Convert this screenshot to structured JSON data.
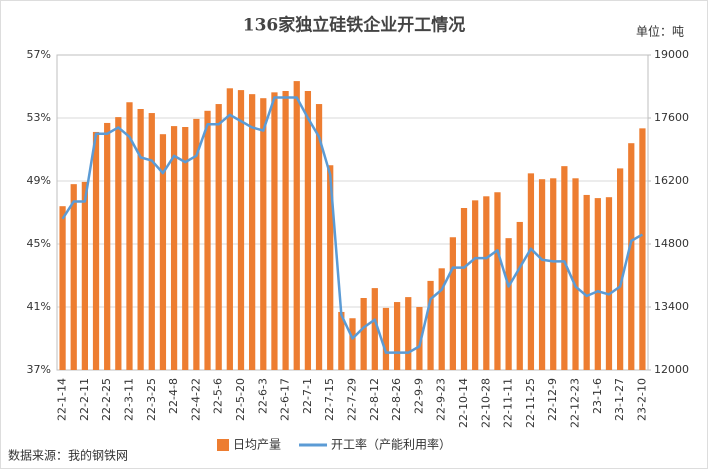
{
  "chart_data": {
    "type": "bar_line",
    "title": "136家独立硅铁企业开工情况",
    "unit": "单位：吨",
    "source": "数据来源：我的钢铁网",
    "categories": [
      "22-1-14",
      null,
      "22-2-11",
      null,
      "22-2-25",
      null,
      "22-3-11",
      null,
      "22-3-25",
      null,
      "22-4-8",
      null,
      "22-4-22",
      null,
      "22-5-6",
      null,
      "22-5-20",
      null,
      "22-6-3",
      null,
      "22-6-17",
      null,
      "22-7-1",
      null,
      "22-7-15",
      null,
      "22-7-29",
      null,
      "22-8-12",
      null,
      "22-8-26",
      null,
      "22-9-9",
      null,
      "22-9-23",
      null,
      "22-10-14",
      null,
      "22-10-28",
      null,
      "22-11-11",
      null,
      "22-11-25",
      null,
      "22-12-9",
      null,
      "22-12-23",
      null,
      "23-1-6",
      null,
      "23-1-27",
      null,
      "23-2-10"
    ],
    "series": [
      {
        "name": "日均产量",
        "kind": "bar",
        "axis": "y2",
        "color": "#ed7d31",
        "values": [
          15640,
          16130,
          16180,
          17290,
          17490,
          17620,
          17950,
          17800,
          17710,
          17240,
          17420,
          17400,
          17580,
          17760,
          17910,
          18260,
          18220,
          18130,
          18040,
          18170,
          18200,
          18420,
          18200,
          17910,
          16550,
          13290,
          13150,
          13600,
          13820,
          13380,
          13510,
          13620,
          13400,
          13980,
          14260,
          14950,
          15600,
          15770,
          15860,
          15950,
          14930,
          15290,
          16370,
          16240,
          16260,
          16530,
          16260,
          15890,
          15820,
          15840,
          16480,
          17040,
          17370
        ]
      },
      {
        "name": "开工率（产能利用率）",
        "kind": "line",
        "axis": "y",
        "color": "#5b9bd5",
        "values": [
          46.6,
          47.7,
          47.7,
          52.0,
          52.0,
          52.4,
          51.8,
          50.5,
          50.3,
          49.5,
          50.6,
          50.2,
          50.6,
          52.6,
          52.6,
          53.2,
          52.8,
          52.4,
          52.2,
          54.3,
          54.3,
          54.3,
          53.0,
          51.8,
          49.4,
          40.5,
          39.0,
          39.7,
          40.2,
          38.1,
          38.1,
          38.1,
          38.5,
          41.5,
          42.1,
          43.5,
          43.5,
          44.1,
          44.1,
          44.6,
          42.3,
          43.5,
          44.7,
          44.0,
          43.9,
          43.9,
          42.3,
          41.7,
          42.0,
          41.8,
          42.3,
          45.2,
          45.6
        ]
      }
    ],
    "ylim": [
      37,
      57
    ],
    "yticks": [
      {
        "value": 37,
        "label": "37%"
      },
      {
        "value": 41,
        "label": "41%"
      },
      {
        "value": 45,
        "label": "45%"
      },
      {
        "value": 49,
        "label": "49%"
      },
      {
        "value": 53,
        "label": "53%"
      },
      {
        "value": 57,
        "label": "57%"
      }
    ],
    "y2lim": [
      12000,
      19000
    ],
    "y2ticks": [
      12000,
      13400,
      14800,
      16200,
      17600,
      19000
    ],
    "grid": true
  }
}
